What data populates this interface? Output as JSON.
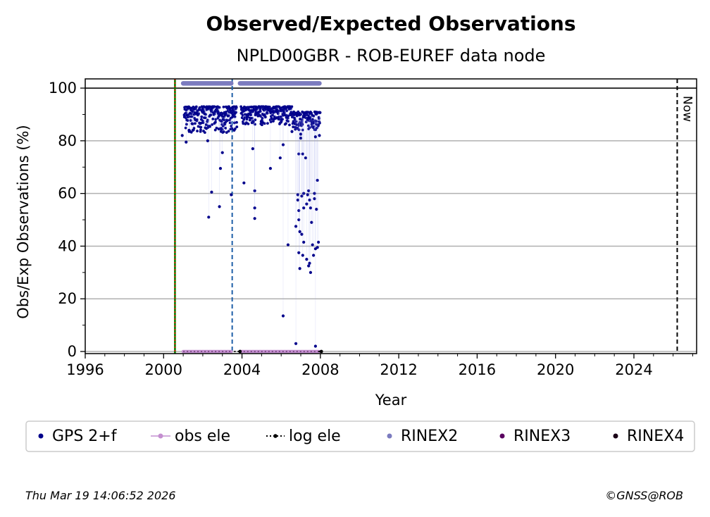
{
  "chart_data": {
    "type": "scatter",
    "title": "Observed/Expected Observations",
    "subtitle": "NPLD00GBR - ROB-EUREF data node",
    "xlabel": "Year",
    "ylabel": "Obs/Exp Observations (%)",
    "xlim": [
      1996,
      2027.2
    ],
    "ylim": [
      -0.8,
      103.5
    ],
    "xticks": [
      1996,
      2000,
      2004,
      2008,
      2012,
      2016,
      2020,
      2024
    ],
    "yticks": [
      0,
      20,
      40,
      60,
      80,
      100
    ],
    "grid": "horizontal",
    "now_label": "Now",
    "now_x": 2026.21,
    "reference_lines": [
      {
        "kind": "station-start-green",
        "x": 2000.58
      },
      {
        "kind": "station-start-red-dotted",
        "x": 2000.58
      },
      {
        "kind": "equipment-change-blue-dashed",
        "x": 2003.5
      },
      {
        "kind": "now-black-dashed",
        "x": 2026.21
      }
    ],
    "hline_value": 100,
    "series": [
      {
        "name": "GPS 2+f",
        "color": "#00008b",
        "dense_bands": [
          {
            "x0": 2001.05,
            "x1": 2003.75,
            "lo": 83,
            "hi": 93
          },
          {
            "x0": 2003.95,
            "x1": 2006.6,
            "lo": 86,
            "hi": 93
          },
          {
            "x0": 2006.6,
            "x1": 2008.0,
            "lo": 84,
            "hi": 91
          }
        ],
        "points": [
          [
            2000.95,
            82
          ],
          [
            2001.15,
            79.5
          ],
          [
            2001.3,
            84
          ],
          [
            2001.5,
            84
          ],
          [
            2001.45,
            86.5
          ],
          [
            2002.3,
            51
          ],
          [
            2002.25,
            80
          ],
          [
            2002.45,
            60.5
          ],
          [
            2002.85,
            55
          ],
          [
            2002.9,
            69.5
          ],
          [
            2003.0,
            75.5
          ],
          [
            2003.45,
            59.5
          ],
          [
            2003.6,
            84
          ],
          [
            2004.1,
            64
          ],
          [
            2004.55,
            77
          ],
          [
            2004.65,
            61
          ],
          [
            2004.65,
            54.5
          ],
          [
            2004.65,
            50.5
          ],
          [
            2005.45,
            69.5
          ],
          [
            2005.95,
            73.5
          ],
          [
            2006.1,
            78.5
          ],
          [
            2006.1,
            13.5
          ],
          [
            2006.35,
            40.5
          ],
          [
            2006.55,
            83.5
          ],
          [
            2006.75,
            47.5
          ],
          [
            2006.75,
            3
          ],
          [
            2006.85,
            59.5
          ],
          [
            2006.85,
            57.5
          ],
          [
            2006.9,
            75
          ],
          [
            2006.9,
            53.5
          ],
          [
            2006.9,
            50
          ],
          [
            2006.9,
            37.5
          ],
          [
            2006.95,
            31.5
          ],
          [
            2006.95,
            45.5
          ],
          [
            2007.0,
            81
          ],
          [
            2007.0,
            82.5
          ],
          [
            2007.05,
            59
          ],
          [
            2007.05,
            44.5
          ],
          [
            2007.1,
            75
          ],
          [
            2007.1,
            36.5
          ],
          [
            2007.15,
            60
          ],
          [
            2007.15,
            54.5
          ],
          [
            2007.15,
            41.5
          ],
          [
            2007.25,
            73.5
          ],
          [
            2007.3,
            56
          ],
          [
            2007.3,
            35
          ],
          [
            2007.35,
            59.5
          ],
          [
            2007.4,
            61
          ],
          [
            2007.4,
            32.5
          ],
          [
            2007.45,
            57.5
          ],
          [
            2007.45,
            33.5
          ],
          [
            2007.5,
            54.5
          ],
          [
            2007.5,
            30
          ],
          [
            2007.55,
            49
          ],
          [
            2007.6,
            40.5
          ],
          [
            2007.65,
            36.5
          ],
          [
            2007.7,
            60
          ],
          [
            2007.7,
            58
          ],
          [
            2007.75,
            2
          ],
          [
            2007.75,
            39
          ],
          [
            2007.75,
            81.5
          ],
          [
            2007.8,
            54
          ],
          [
            2007.85,
            65
          ],
          [
            2007.9,
            41.5
          ],
          [
            2007.85,
            39.5
          ],
          [
            2007.95,
            82
          ]
        ]
      },
      {
        "name": "obs ele",
        "color": "#c48fd0",
        "segments": [
          [
            2001.0,
            2003.45
          ],
          [
            2003.9,
            2007.95
          ]
        ],
        "y": 0
      },
      {
        "name": "log ele",
        "color": "#000000",
        "segments": [
          [
            2003.6,
            2003.9
          ],
          [
            2007.9,
            2008.05
          ]
        ],
        "y": 0
      },
      {
        "name": "RINEX2",
        "color": "#7b7bbf",
        "segments": [
          [
            2001.0,
            2003.45
          ],
          [
            2003.9,
            2007.95
          ]
        ],
        "y": 101.8
      },
      {
        "name": "RINEX3",
        "color": "#5a0060",
        "segments": []
      },
      {
        "name": "RINEX4",
        "color": "#1a0016",
        "segments": []
      }
    ],
    "legend": {
      "placement": "bottom",
      "entries": [
        {
          "label": "GPS 2+f",
          "marker": "dot",
          "color": "#00008b"
        },
        {
          "label": "obs ele",
          "marker": "line-dot",
          "color": "#c48fd0"
        },
        {
          "label": "log ele",
          "marker": "dotted-dot",
          "color": "#000000"
        },
        {
          "label": "RINEX2",
          "marker": "dot",
          "color": "#7b7bbf"
        },
        {
          "label": "RINEX3",
          "marker": "dot",
          "color": "#5a0060"
        },
        {
          "label": "RINEX4",
          "marker": "dot",
          "color": "#1a0016"
        }
      ]
    }
  },
  "footer": {
    "timestamp": "Thu Mar 19 14:06:52 2026",
    "copyright": "©GNSS@ROB"
  }
}
